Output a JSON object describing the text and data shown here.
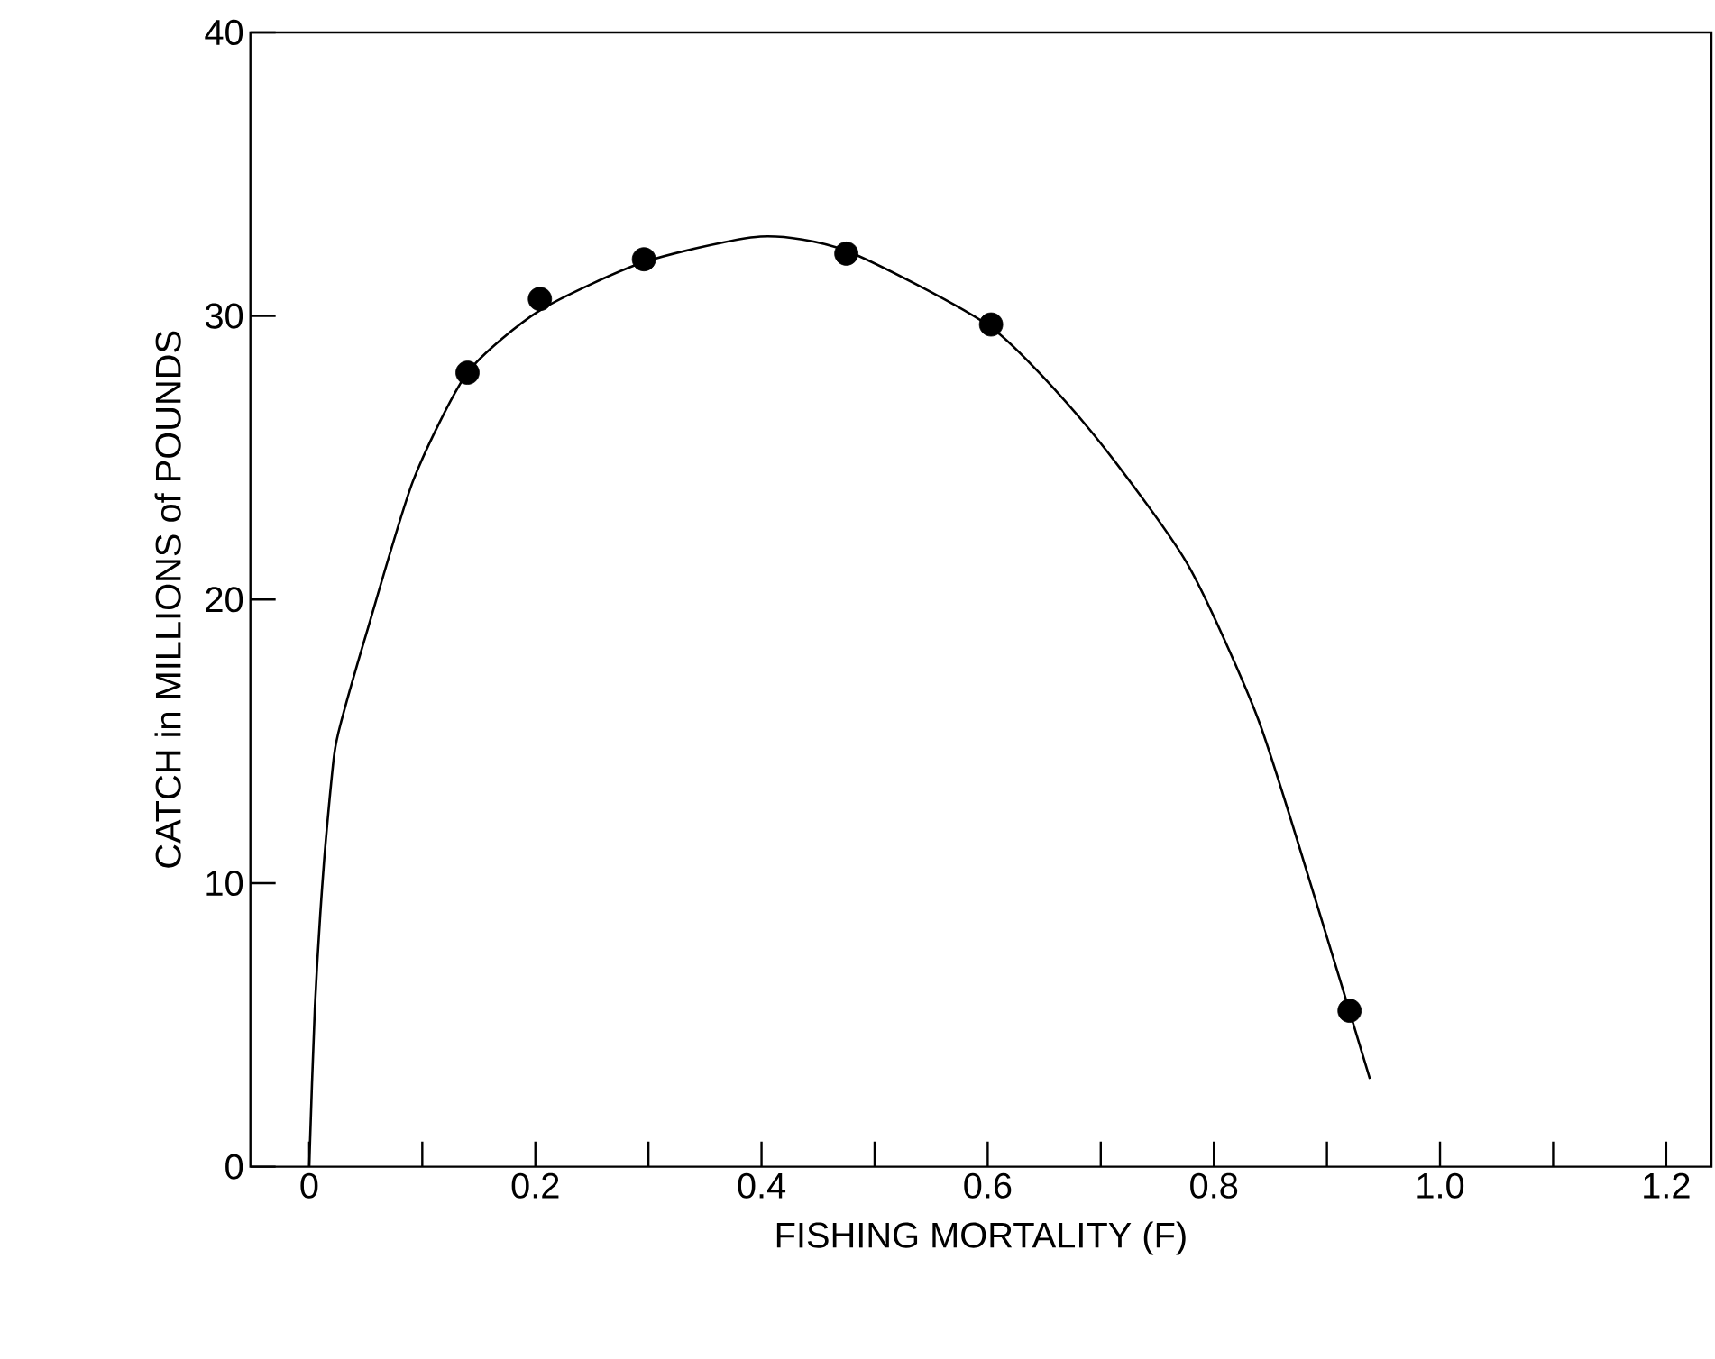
{
  "chart_data": {
    "type": "scatter",
    "xlabel": "FISHING MORTALITY (F)",
    "ylabel": "CATCH in MILLIONS of POUNDS",
    "xlim": [
      -0.052,
      1.24
    ],
    "ylim": [
      0,
      40
    ],
    "xticks": [
      0,
      {
        "value": 0.1,
        "label": null
      },
      {
        "value": 0.2,
        "label": "0.2"
      },
      {
        "value": 0.3,
        "label": null
      },
      {
        "value": 0.4,
        "label": "0.4"
      },
      {
        "value": 0.5,
        "label": null
      },
      {
        "value": 0.6,
        "label": "0.6"
      },
      {
        "value": 0.7,
        "label": null
      },
      {
        "value": 0.8,
        "label": "0.8"
      },
      {
        "value": 0.9,
        "label": null
      },
      {
        "value": 1.0,
        "label": "1.0"
      },
      {
        "value": 1.1,
        "label": null
      },
      {
        "value": 1.2,
        "label": "1.2"
      }
    ],
    "yticks": [
      0,
      10,
      20,
      30,
      40
    ],
    "series": [
      {
        "color": "#000000",
        "x": [
          0.14,
          0.204,
          0.296,
          0.475,
          0.603,
          0.92
        ],
        "values": [
          28.0,
          30.6,
          32.0,
          32.2,
          29.7,
          5.5
        ]
      },
      {
        "type": "line",
        "color": "#000000",
        "x": [
          0,
          0.005,
          0.013,
          0.022,
          0.029,
          0.052,
          0.092,
          0.14,
          0.204,
          0.296,
          0.399,
          0.475,
          0.603,
          0.69,
          0.776,
          0.839,
          0.89,
          0.938
        ],
        "values": [
          0,
          5.6,
          10.7,
          14.5,
          15.8,
          19.0,
          24.2,
          28.0,
          30.2,
          31.9,
          32.8,
          32.3,
          29.6,
          26.0,
          21.3,
          15.8,
          9.4,
          3.1
        ]
      }
    ]
  }
}
